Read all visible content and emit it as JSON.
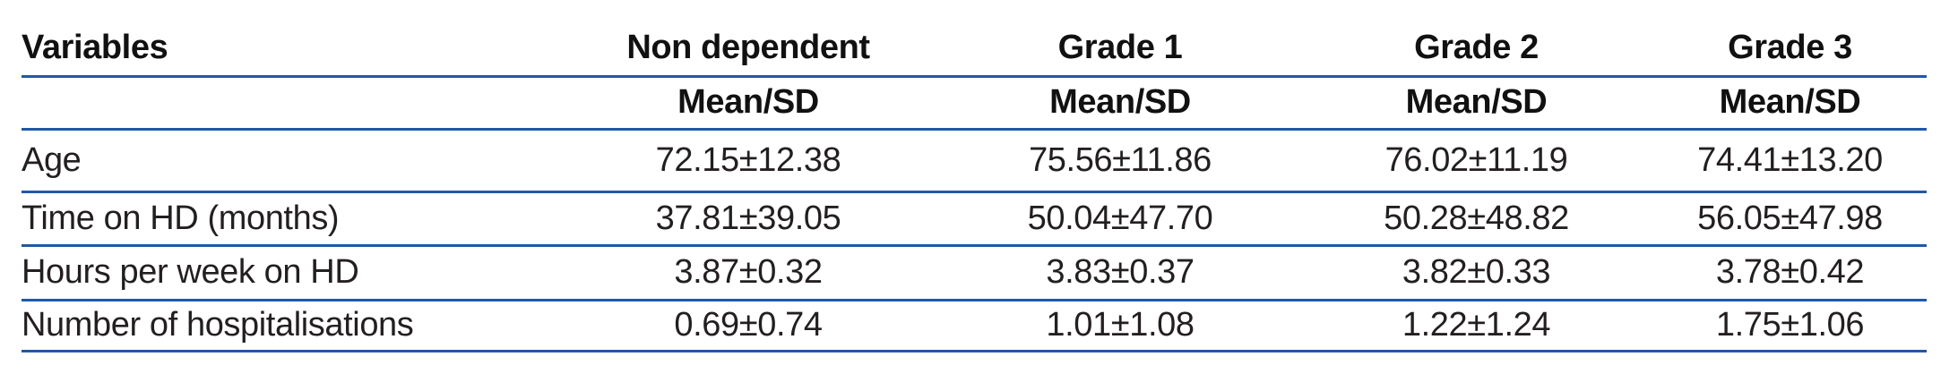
{
  "table": {
    "colors": {
      "rule": "#2058a8",
      "text": "#231f20",
      "heading": "#111111"
    },
    "columns": [
      {
        "label": "Variables",
        "subheader": ""
      },
      {
        "label": "Non dependent",
        "subheader": "Mean/SD"
      },
      {
        "label": "Grade 1",
        "subheader": "Mean/SD"
      },
      {
        "label": "Grade 2",
        "subheader": "Mean/SD"
      },
      {
        "label": "Grade 3",
        "subheader": "Mean/SD"
      }
    ],
    "rows": [
      {
        "variable": "Age",
        "values": [
          "72.15±12.38",
          "75.56±11.86",
          "76.02±11.19",
          "74.41±13.20"
        ]
      },
      {
        "variable": "Time on HD (months)",
        "values": [
          "37.81±39.05",
          "50.04±47.70",
          "50.28±48.82",
          "56.05±47.98"
        ]
      },
      {
        "variable": "Hours per week on HD",
        "values": [
          "3.87±0.32",
          "3.83±0.37",
          "3.82±0.33",
          "3.78±0.42"
        ]
      },
      {
        "variable": "Number of hospitalisations",
        "values": [
          "0.69±0.74",
          "1.01±1.08",
          "1.22±1.24",
          "1.75±1.06"
        ]
      }
    ]
  }
}
